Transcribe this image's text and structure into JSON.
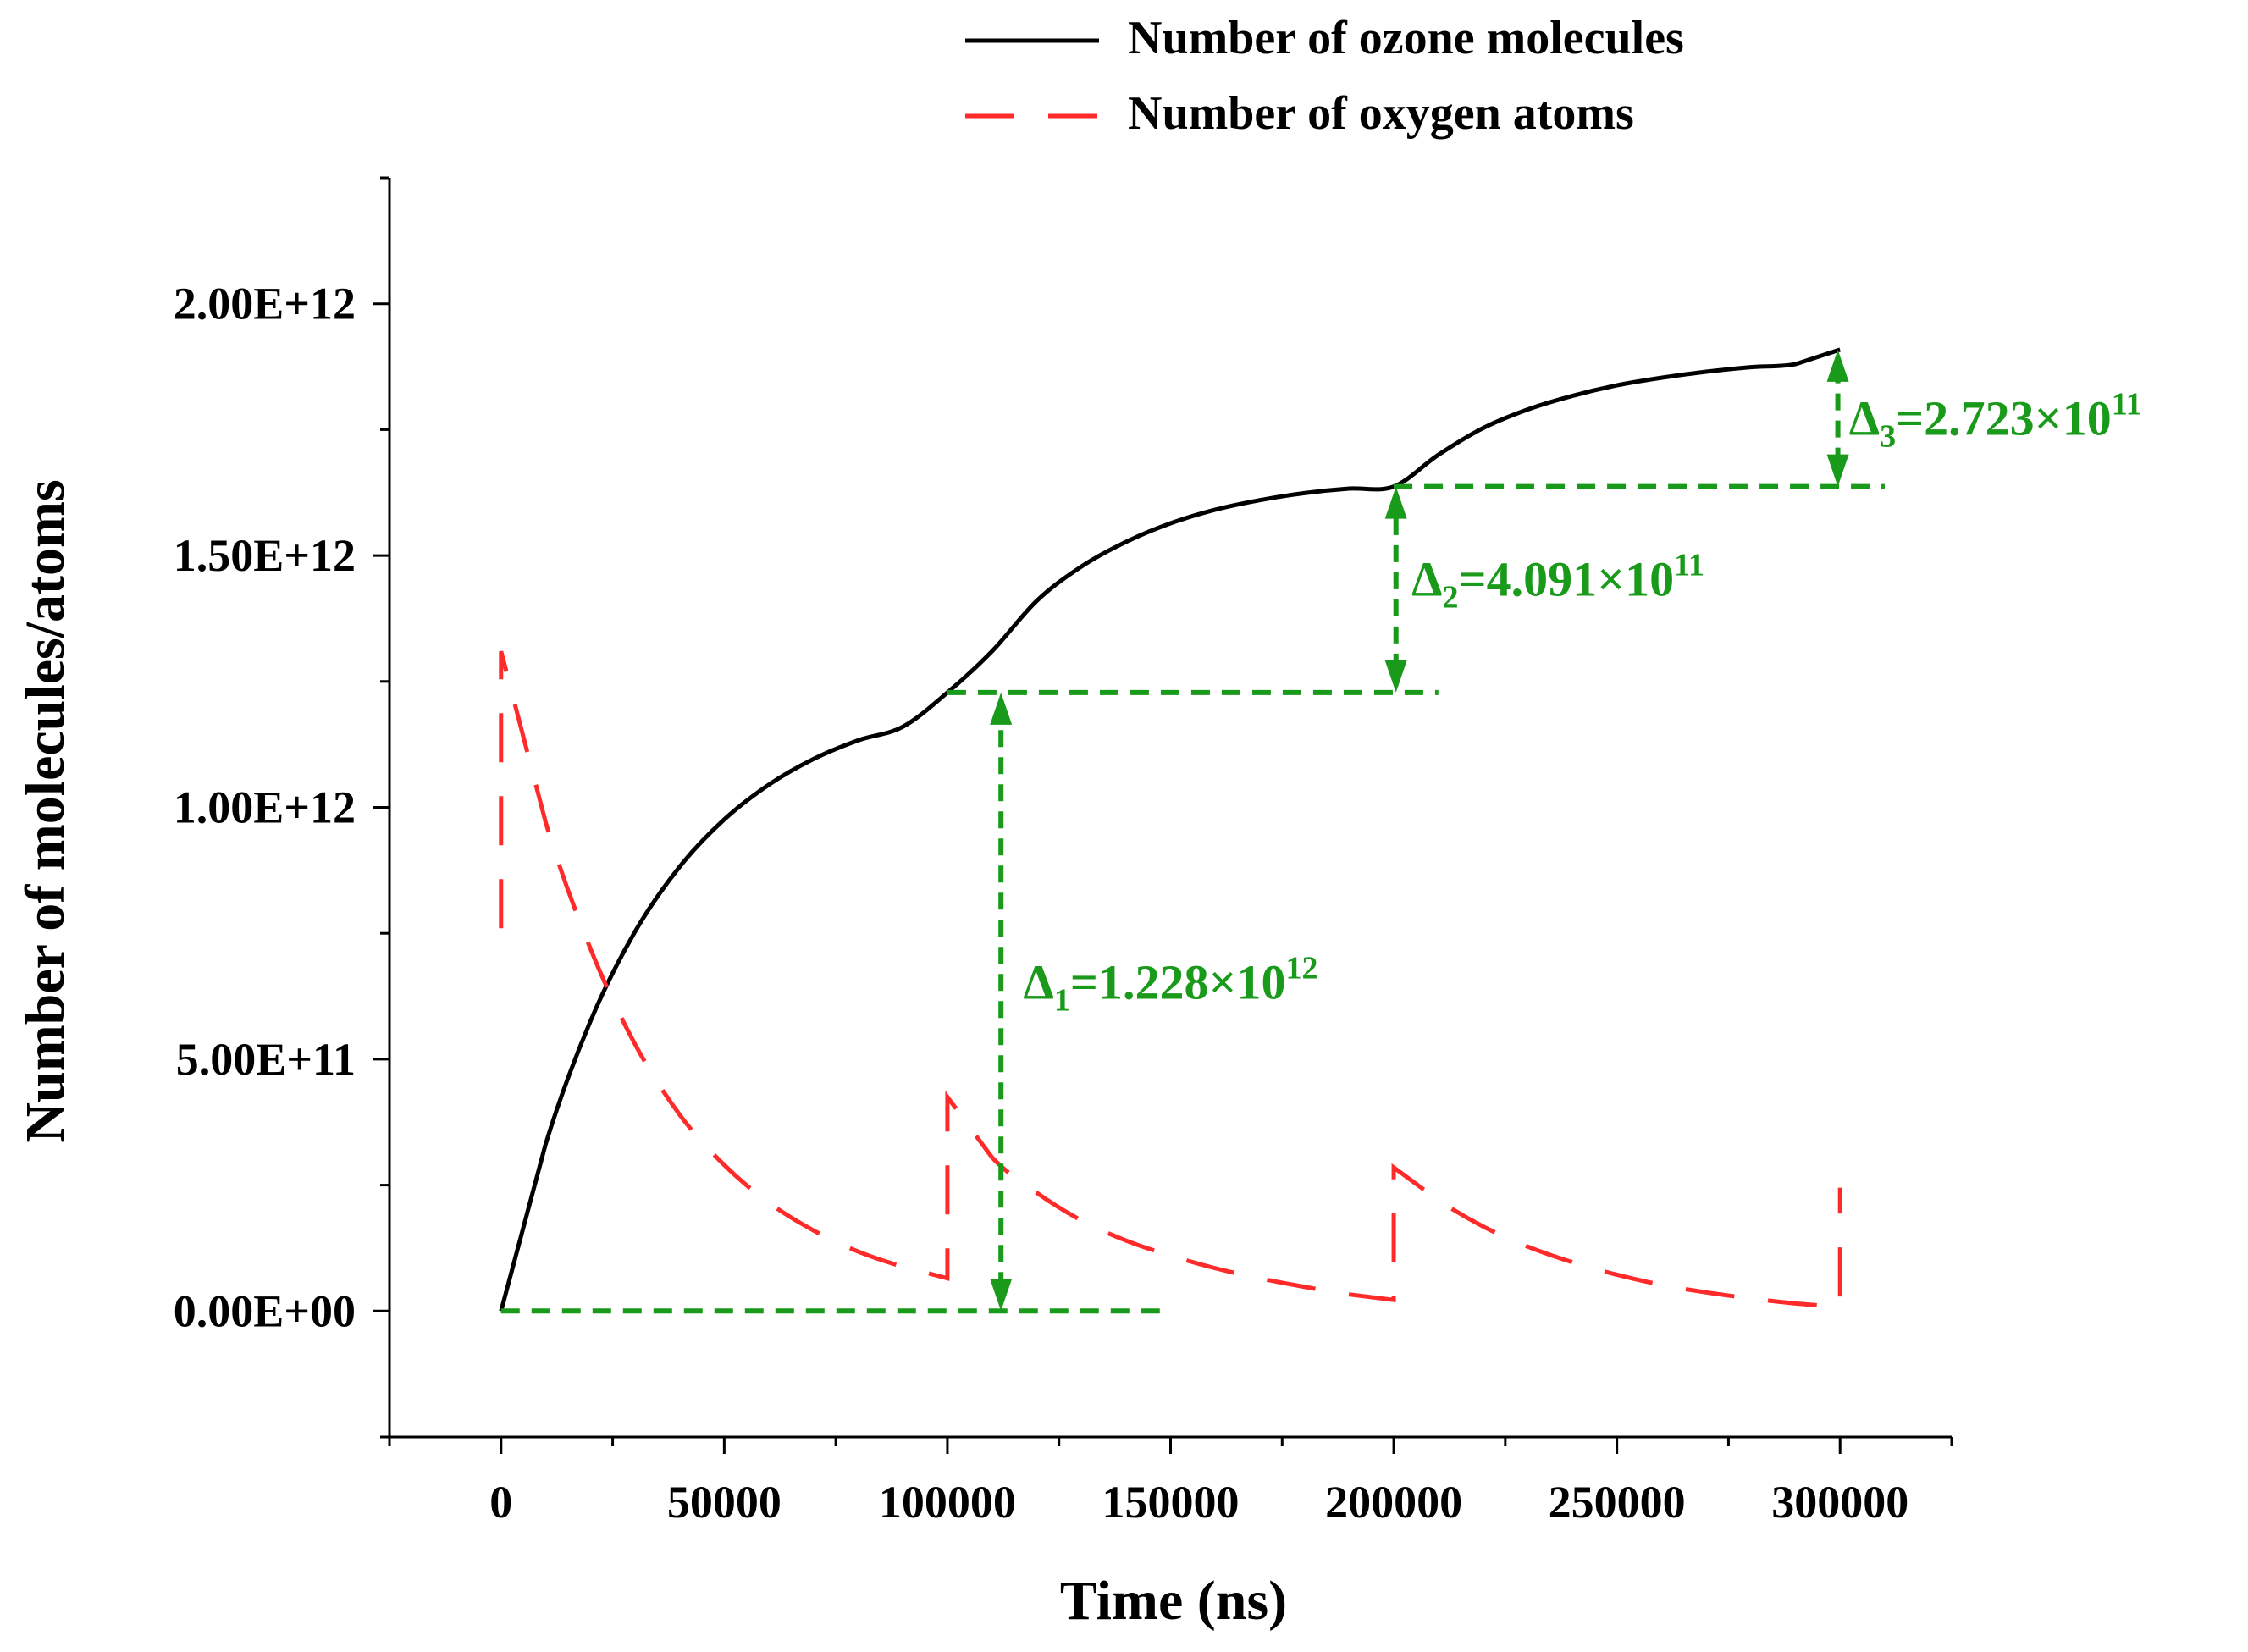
{
  "chart_data": {
    "type": "line",
    "title": "",
    "xlabel": "Time (ns)",
    "ylabel": "Number of molecules/atoms",
    "xlim": [
      -25000,
      325000
    ],
    "ylim": [
      -250000000000.0,
      2250000000000.0
    ],
    "xticks": [
      0,
      50000,
      100000,
      150000,
      200000,
      250000,
      300000
    ],
    "xtick_labels": [
      "0",
      "50000",
      "100000",
      "150000",
      "200000",
      "250000",
      "300000"
    ],
    "yticks": [
      0,
      500000000000,
      1000000000000,
      1500000000000,
      2000000000000
    ],
    "ytick_labels": [
      "0.00E+00",
      "5.00E+11",
      "1.00E+12",
      "1.50E+12",
      "2.00E+12"
    ],
    "grid": false,
    "legend": {
      "position": "top",
      "entries": [
        {
          "label": "Number of ozone molecules",
          "color": "#000000",
          "style": "solid"
        },
        {
          "label": "Number of oxygen atoms",
          "color": "#ff2a2a",
          "style": "dashed"
        }
      ]
    },
    "series": [
      {
        "name": "Number of ozone molecules",
        "color": "#000000",
        "style": "solid",
        "x": [
          0,
          10000,
          20000,
          30000,
          40000,
          50000,
          60000,
          70000,
          80000,
          90000,
          100000,
          110000,
          120000,
          130000,
          140000,
          150000,
          160000,
          170000,
          180000,
          190000,
          200000,
          210000,
          220000,
          230000,
          240000,
          250000,
          260000,
          270000,
          280000,
          290000,
          300000
        ],
        "y": [
          0,
          332000000000,
          575000000000,
          753000000000,
          882000000000,
          976000000000,
          1045000000000,
          1096000000000,
          1133000000000,
          1160000000000,
          1228000000000,
          1310000000000,
          1410000000000,
          1478000000000,
          1527000000000,
          1564000000000,
          1591000000000,
          1610000000000,
          1624000000000,
          1633000000000,
          1637000000000,
          1700000000000,
          1753000000000,
          1790000000000,
          1817000000000,
          1838000000000,
          1853000000000,
          1865000000000,
          1874000000000,
          1880000000000,
          1909000000000
        ]
      },
      {
        "name": "Number of oxygen atoms",
        "color": "#ff2a2a",
        "style": "dashed",
        "x": [
          0,
          0,
          10000,
          20000,
          30000,
          40000,
          50000,
          60000,
          70000,
          80000,
          90000,
          100000,
          100000,
          110000,
          120000,
          130000,
          140000,
          150000,
          160000,
          170000,
          180000,
          190000,
          200000,
          200000,
          210000,
          220000,
          230000,
          240000,
          250000,
          260000,
          270000,
          280000,
          290000,
          300000,
          300000
        ],
        "y": [
          760000000000,
          1310000000000,
          970000000000,
          720000000000,
          530000000000,
          390000000000,
          290000000000,
          215000000000,
          160000000000,
          118000000000,
          88000000000,
          65000000000,
          425000000000,
          305000000000,
          235000000000,
          180000000000,
          140000000000,
          110000000000,
          85000000000,
          65000000000,
          48000000000,
          33000000000,
          22000000000,
          285000000000,
          220000000000,
          168000000000,
          128000000000,
          97000000000,
          72000000000,
          52000000000,
          37000000000,
          25000000000,
          15000000000,
          8000000000,
          245000000000
        ]
      }
    ],
    "reference_lines": [
      {
        "x": [
          0,
          150000
        ],
        "y": [
          0,
          0
        ]
      },
      {
        "x": [
          100000,
          210000
        ],
        "y": [
          1228000000000,
          1228000000000
        ]
      },
      {
        "x": [
          200000,
          310000
        ],
        "y": [
          1637000000000,
          1637000000000
        ]
      }
    ],
    "annotations": [
      {
        "symbol": "Δ",
        "sub": "1",
        "text": "=1.228×10",
        "sup": "12",
        "arrow_x": 112000,
        "arrow_from": 0,
        "arrow_to": 1228000000000,
        "label_x": 117000,
        "label_y": 620000000000
      },
      {
        "symbol": "Δ",
        "sub": "2",
        "text": "=4.091×10",
        "sup": "11",
        "arrow_x": 200500,
        "arrow_from": 1228000000000,
        "arrow_to": 1637000000000,
        "label_x": 204000,
        "label_y": 1420000000000
      },
      {
        "symbol": "Δ",
        "sub": "3",
        "text": "=2.723×10",
        "sup": "11",
        "arrow_x": 299500,
        "arrow_from": 1637000000000,
        "arrow_to": 1909000000000,
        "label_x": 302000,
        "label_y": 1740000000000
      }
    ],
    "annotation_color": "#1a9a1a"
  }
}
